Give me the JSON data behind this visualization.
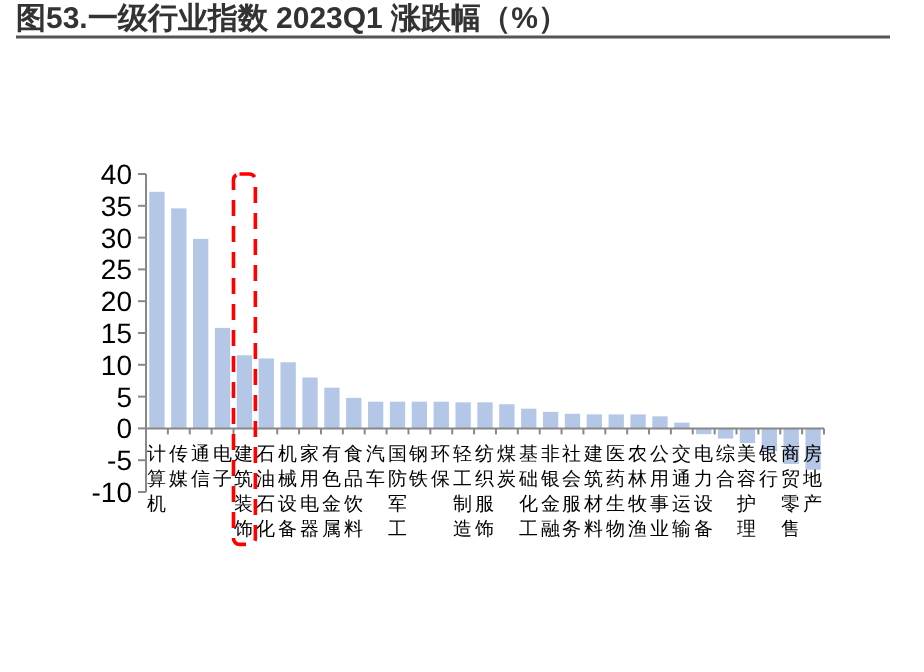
{
  "chart_data": {
    "type": "bar",
    "title": "图53.一级行业指数 2023Q1 涨跌幅（%）",
    "categories": [
      "计算机",
      "传媒",
      "通信",
      "电子",
      "建筑装饰",
      "石油石化",
      "机械设备",
      "家用电器",
      "有色金属",
      "食品饮料",
      "汽车",
      "国防军工",
      "钢铁",
      "环保",
      "轻工制造",
      "纺织服饰",
      "煤炭",
      "基础化工",
      "非银金融",
      "社会服务",
      "建筑材料",
      "医药生物",
      "农林牧渔",
      "公用事业",
      "交通运输",
      "电力设备",
      "综合",
      "美容护理",
      "银行",
      "商贸零售",
      "房地产"
    ],
    "values": [
      37.2,
      34.6,
      29.8,
      15.8,
      11.5,
      11.0,
      10.4,
      8.0,
      6.4,
      4.8,
      4.2,
      4.2,
      4.2,
      4.2,
      4.1,
      4.1,
      3.8,
      3.1,
      2.6,
      2.3,
      2.2,
      2.2,
      2.2,
      1.9,
      0.9,
      -0.9,
      -1.6,
      -2.3,
      -3.6,
      -5.6,
      -6.5
    ],
    "color": "#b4c7e7",
    "ylim": [
      -10,
      40
    ],
    "yticks": [
      -10,
      -5,
      0,
      5,
      10,
      15,
      20,
      25,
      30,
      35,
      40
    ]
  }
}
